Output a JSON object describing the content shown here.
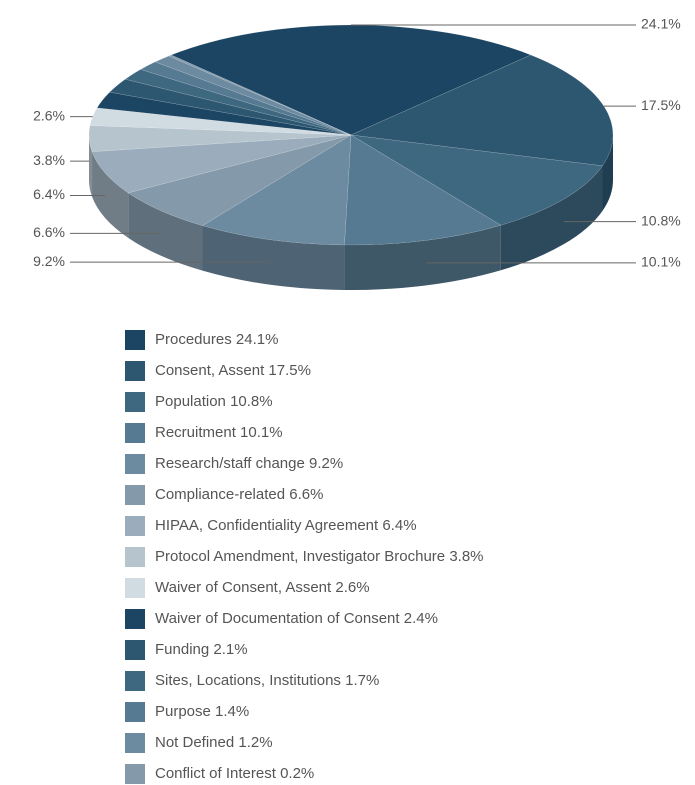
{
  "chart_data": {
    "type": "pie3d",
    "categories": [
      "Procedures",
      "Consent, Assent",
      "Population",
      "Recruitment",
      "Research/staff change",
      "Compliance-related",
      "HIPAA, Confidentiality Agreement",
      "Protocol Amendment, Investigator Brochure",
      "Waiver of Consent, Assent",
      "Waiver of Documentation of Consent",
      "Funding",
      "Sites, Locations, Institutions",
      "Purpose",
      "Not Defined",
      "Conflict of Interest"
    ],
    "values": [
      24.1,
      17.5,
      10.8,
      10.1,
      9.2,
      6.6,
      6.4,
      3.8,
      2.6,
      2.4,
      2.1,
      1.7,
      1.4,
      1.2,
      0.2
    ],
    "value_labels": [
      "24.1%",
      "17.5%",
      "10.8%",
      "10.1%",
      "9.2%",
      "6.6%",
      "6.4%",
      "3.8%",
      "2.6%",
      "2.4%",
      "2.1%",
      "1.7%",
      "1.4%",
      "1.2%",
      "0.2%"
    ],
    "colors": [
      "#1b4562",
      "#2d5670",
      "#3e6780",
      "#567a91",
      "#6c8aa0",
      "#849aab",
      "#9badbc",
      "#b6c4ce",
      "#d1dbe2",
      "#1b4562",
      "#2d5670",
      "#3e6780",
      "#567a91",
      "#6c8aa0",
      "#849aab"
    ],
    "legend": "bottom"
  }
}
